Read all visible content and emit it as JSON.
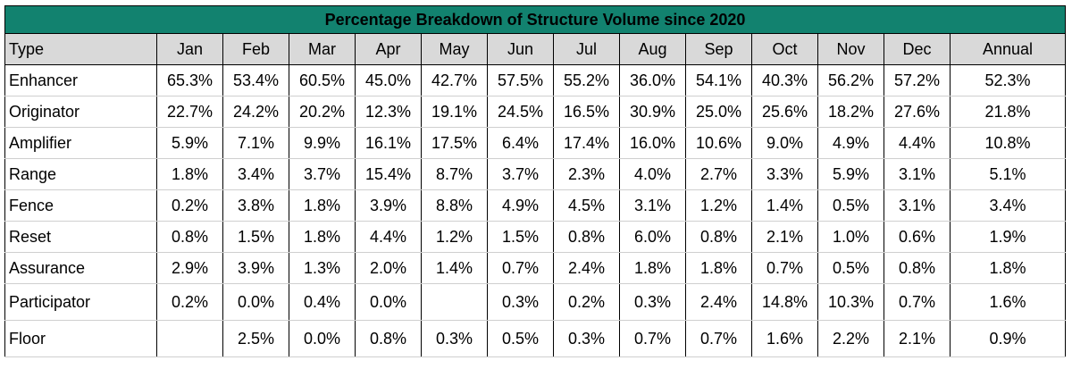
{
  "chart_data": {
    "type": "table",
    "title": "Percentage Breakdown of Structure Volume since 2020",
    "columns": [
      "Type",
      "Jan",
      "Feb",
      "Mar",
      "Apr",
      "May",
      "Jun",
      "Jul",
      "Aug",
      "Sep",
      "Oct",
      "Nov",
      "Dec",
      "Annual"
    ],
    "rows": [
      [
        "Enhancer",
        "65.3%",
        "53.4%",
        "60.5%",
        "45.0%",
        "42.7%",
        "57.5%",
        "55.2%",
        "36.0%",
        "54.1%",
        "40.3%",
        "56.2%",
        "57.2%",
        "52.3%"
      ],
      [
        "Originator",
        "22.7%",
        "24.2%",
        "20.2%",
        "12.3%",
        "19.1%",
        "24.5%",
        "16.5%",
        "30.9%",
        "25.0%",
        "25.6%",
        "18.2%",
        "27.6%",
        "21.8%"
      ],
      [
        "Amplifier",
        "5.9%",
        "7.1%",
        "9.9%",
        "16.1%",
        "17.5%",
        "6.4%",
        "17.4%",
        "16.0%",
        "10.6%",
        "9.0%",
        "4.9%",
        "4.4%",
        "10.8%"
      ],
      [
        "Range",
        "1.8%",
        "3.4%",
        "3.7%",
        "15.4%",
        "8.7%",
        "3.7%",
        "2.3%",
        "4.0%",
        "2.7%",
        "3.3%",
        "5.9%",
        "3.1%",
        "5.1%"
      ],
      [
        "Fence",
        "0.2%",
        "3.8%",
        "1.8%",
        "3.9%",
        "8.8%",
        "4.9%",
        "4.5%",
        "3.1%",
        "1.2%",
        "1.4%",
        "0.5%",
        "3.1%",
        "3.4%"
      ],
      [
        "Reset",
        "0.8%",
        "1.5%",
        "1.8%",
        "4.4%",
        "1.2%",
        "1.5%",
        "0.8%",
        "6.0%",
        "0.8%",
        "2.1%",
        "1.0%",
        "0.6%",
        "1.9%"
      ],
      [
        "Assurance",
        "2.9%",
        "3.9%",
        "1.3%",
        "2.0%",
        "1.4%",
        "0.7%",
        "2.4%",
        "1.8%",
        "1.8%",
        "0.7%",
        "0.5%",
        "0.8%",
        "1.8%"
      ],
      [
        "Participator",
        "0.2%",
        "0.0%",
        "0.4%",
        "0.0%",
        "",
        "0.3%",
        "0.2%",
        "0.3%",
        "2.4%",
        "14.8%",
        "10.3%",
        "0.7%",
        "1.6%"
      ],
      [
        "Floor",
        "",
        "2.5%",
        "0.0%",
        "0.8%",
        "0.3%",
        "0.5%",
        "0.3%",
        "0.7%",
        "0.7%",
        "1.6%",
        "2.2%",
        "2.1%",
        "0.9%"
      ]
    ],
    "colors": {
      "title_bg": "#12826f",
      "header_bg": "#d9d9d9"
    }
  }
}
